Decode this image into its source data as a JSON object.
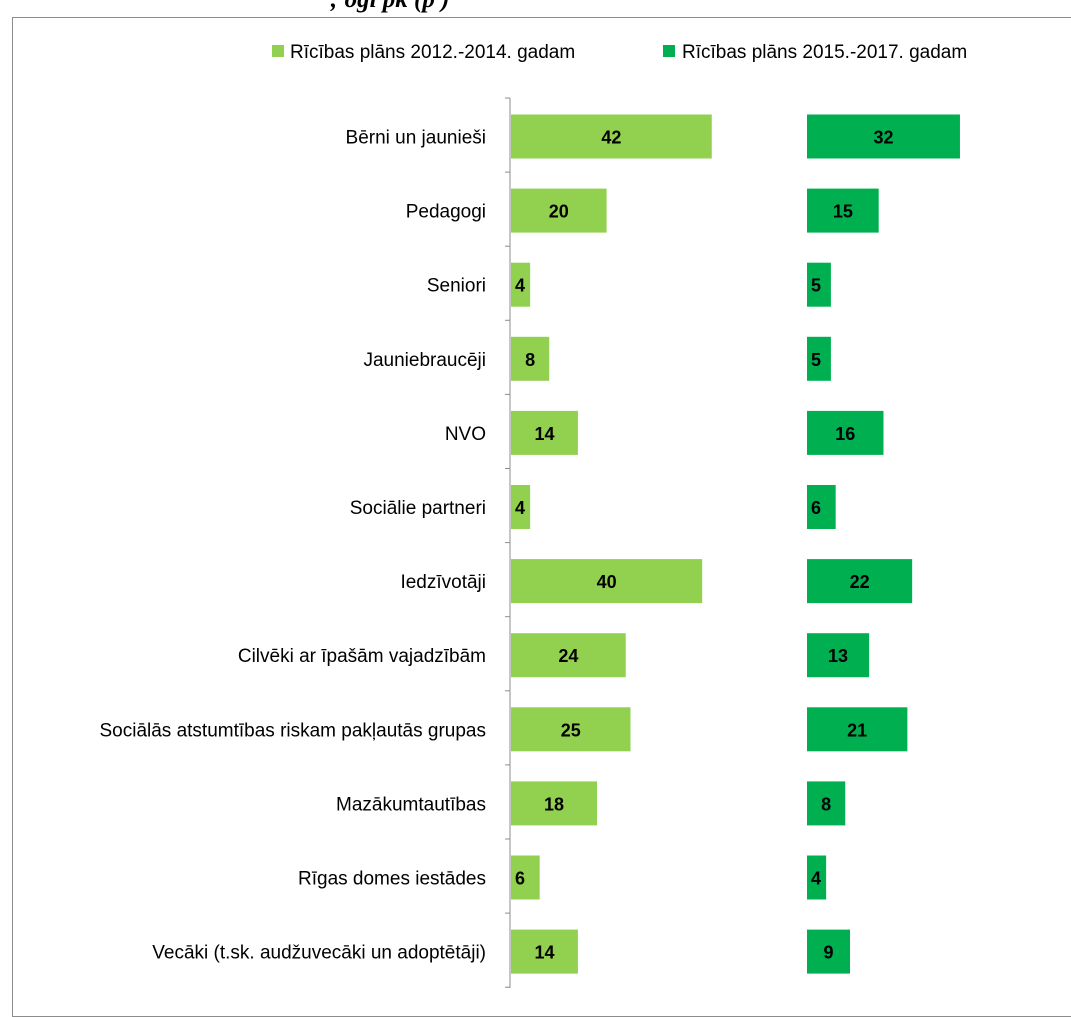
{
  "top_text": "; ögi    pk (p                      )",
  "chart_data": {
    "type": "bar",
    "orientation": "horizontal",
    "layout": "two panels (one per series), categories shared",
    "categories": [
      "Bērni un jaunieši",
      "Pedagogi",
      "Seniori",
      "Jauniebraucēji",
      "NVO",
      "Sociālie partneri",
      "Iedzīvotāji",
      "Cilvēki ar īpašām vajadzībām",
      "Sociālās atstumtības riskam pakļautās grupas",
      "Mazākumtautības",
      "Rīgas domes iestādes",
      "Vecāki (t.sk. audžuvecāki un adoptētāji)"
    ],
    "series": [
      {
        "name": "Rīcības plāns 2012.-2014. gadam",
        "color": "#92d050",
        "values": [
          42,
          20,
          4,
          8,
          14,
          4,
          40,
          24,
          25,
          18,
          6,
          14
        ]
      },
      {
        "name": "Rīcības plāns 2015.-2017. gadam",
        "color": "#00b050",
        "values": [
          32,
          15,
          5,
          5,
          16,
          6,
          22,
          13,
          21,
          8,
          4,
          9
        ]
      }
    ],
    "data_labels": true,
    "legend_position": "top",
    "grid": false
  }
}
